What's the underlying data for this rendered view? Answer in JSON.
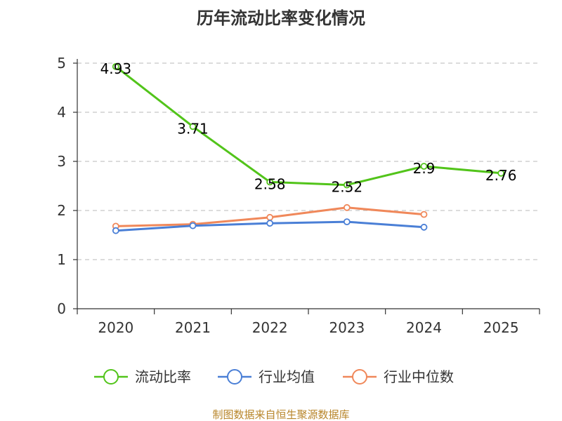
{
  "chart_data": {
    "type": "line",
    "title": "历年流动比率变化情况",
    "categories": [
      "2020",
      "2021",
      "2022",
      "2023",
      "2024",
      "2025"
    ],
    "ylim": [
      0,
      5
    ],
    "yticks": [
      0,
      1,
      2,
      3,
      4,
      5
    ],
    "grid": true,
    "legend_position": "bottom",
    "series": [
      {
        "name": "流动比率",
        "color": "#52c41a",
        "values": [
          4.93,
          3.71,
          2.58,
          2.52,
          2.9,
          2.76
        ],
        "labels": [
          "4.93",
          "3.71",
          "2.58",
          "2.52",
          "2.9",
          "2.76"
        ]
      },
      {
        "name": "行业均值",
        "color": "#4a7fd6",
        "values": [
          1.59,
          1.69,
          1.74,
          1.77,
          1.66,
          null
        ]
      },
      {
        "name": "行业中位数",
        "color": "#f0885a",
        "values": [
          1.68,
          1.72,
          1.86,
          2.06,
          1.92,
          null
        ]
      }
    ],
    "source": "制图数据来自恒生聚源数据库"
  }
}
